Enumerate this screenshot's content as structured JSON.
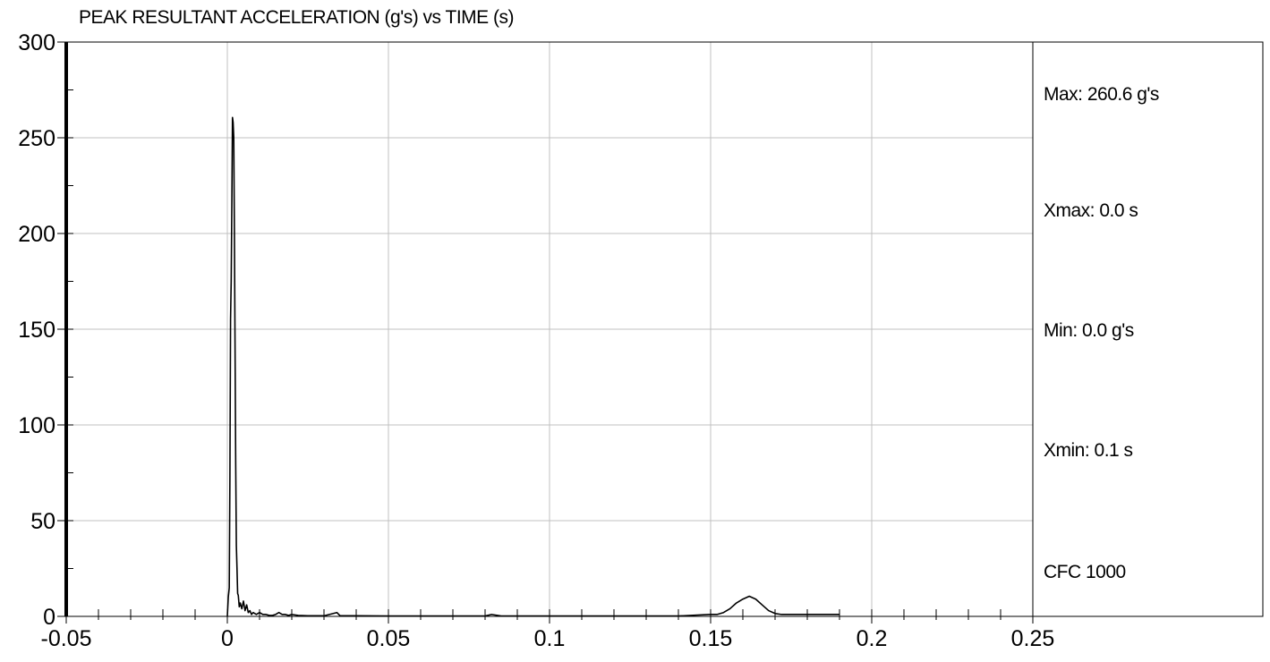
{
  "chart_data": {
    "type": "line",
    "title": "PEAK RESULTANT ACCELERATION (g's) vs TIME (s)",
    "xlabel": "",
    "ylabel": "",
    "xlim": [
      -0.05,
      0.25
    ],
    "ylim": [
      0,
      300
    ],
    "x_ticks": [
      -0.05,
      0,
      0.05,
      0.1,
      0.15,
      0.2,
      0.25
    ],
    "x_tick_labels": [
      "-0.05",
      "0",
      "0.05",
      "0.1",
      "0.15",
      "0.2",
      "0.25"
    ],
    "y_ticks": [
      0,
      50,
      100,
      150,
      200,
      250,
      300
    ],
    "y_tick_labels": [
      "0",
      "50",
      "100",
      "150",
      "200",
      "250",
      "300"
    ],
    "grid": true,
    "legend": "none",
    "line_color": "#000000",
    "grid_color": "#c0c0c0",
    "series": [
      {
        "x": [
          0,
          0.0003,
          0.0006,
          0.0008,
          0.001,
          0.0012,
          0.0014,
          0.0016,
          0.0018,
          0.002,
          0.0022,
          0.0024,
          0.0026,
          0.0028,
          0.003,
          0.0032,
          0.0034,
          0.0037,
          0.004,
          0.0045,
          0.005,
          0.0055,
          0.006,
          0.0065,
          0.007,
          0.0075,
          0.008,
          0.009,
          0.01,
          0.011,
          0.012,
          0.013,
          0.014,
          0.015,
          0.016,
          0.017,
          0.018,
          0.019,
          0.02,
          0.022,
          0.025,
          0.03,
          0.034,
          0.035,
          0.04,
          0.05,
          0.06,
          0.07,
          0.08,
          0.082,
          0.085,
          0.09,
          0.1,
          0.11,
          0.12,
          0.13,
          0.14,
          0.15,
          0.152,
          0.154,
          0.156,
          0.158,
          0.16,
          0.162,
          0.164,
          0.166,
          0.168,
          0.17,
          0.172,
          0.18,
          0.19
        ],
        "values": [
          0,
          10,
          15,
          72,
          155,
          175,
          215,
          260.6,
          258,
          250,
          200,
          140,
          80,
          37,
          25,
          12,
          11,
          5,
          7,
          4,
          8,
          3,
          6,
          2,
          3,
          1,
          2,
          1,
          2,
          1,
          1,
          0.5,
          0.5,
          1,
          2,
          1,
          1,
          0.5,
          1,
          0.5,
          0.3,
          0.3,
          2,
          0.3,
          0.3,
          0.2,
          0.2,
          0.2,
          0.2,
          1,
          0.2,
          0.2,
          0.2,
          0.2,
          0.2,
          0.2,
          0.2,
          1,
          1,
          2,
          4,
          7,
          9,
          10.5,
          9,
          6,
          3,
          1.5,
          1,
          1,
          1
        ]
      }
    ],
    "stats": {
      "max": "Max: 260.6 g's",
      "xmax": "Xmax: 0.0 s",
      "min": "Min: 0.0 g's",
      "xmin": "Xmin: 0.1 s",
      "filter": "CFC 1000"
    }
  }
}
